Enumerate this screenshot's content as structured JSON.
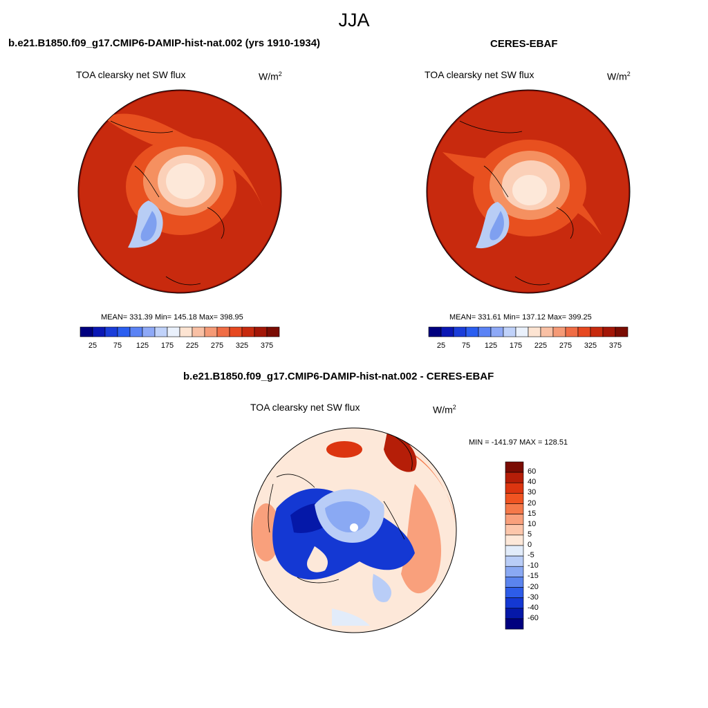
{
  "main_title": "JJA",
  "panels": [
    {
      "case": "b.e21.B1850.f09_g17.CMIP6-DAMIP-hist-nat.002 (yrs 1910-1934)",
      "variable": "TOA clearsky net SW flux",
      "units_base": "W/m",
      "units_sup": "2",
      "stats": "MEAN= 331.39  Min= 145.18  Max= 398.95"
    },
    {
      "case": "CERES-EBAF",
      "variable": "TOA clearsky net SW flux",
      "units_base": "W/m",
      "units_sup": "2",
      "stats": "MEAN= 331.61  Min= 137.12  Max= 399.25"
    }
  ],
  "abs_colorbar": {
    "labels": [
      "25",
      "75",
      "125",
      "175",
      "225",
      "275",
      "325",
      "375"
    ],
    "colors": [
      "#00007f",
      "#0a17b4",
      "#1a3dd9",
      "#2b5ef0",
      "#5b83f5",
      "#8ea9f7",
      "#c0d2fa",
      "#eaf1fc",
      "#fde4d2",
      "#f9c0a4",
      "#f59a76",
      "#f06d45",
      "#e64820",
      "#c72a0e",
      "#a31607",
      "#7a0c03"
    ]
  },
  "diff_panel": {
    "case": "b.e21.B1850.f09_g17.CMIP6-DAMIP-hist-nat.002 - CERES-EBAF",
    "variable": "TOA clearsky net SW flux",
    "units_base": "W/m",
    "units_sup": "2",
    "stats": "MIN = -141.97 MAX = 128.51"
  },
  "diff_colorbar": {
    "labels": [
      "60",
      "40",
      "30",
      "20",
      "15",
      "10",
      "5",
      "0",
      "-5",
      "-10",
      "-15",
      "-20",
      "-30",
      "-40",
      "-60"
    ],
    "colors": [
      "#7a0c03",
      "#b51e08",
      "#dc3510",
      "#f05422",
      "#f5794a",
      "#f9a07c",
      "#fcc6ab",
      "#fde8d9",
      "#e2ecfa",
      "#b9cdf7",
      "#8aa9f3",
      "#5b84ee",
      "#2d5ce8",
      "#1438d3",
      "#0518a8",
      "#00007f"
    ]
  },
  "map_colors": {
    "deep_red": "#8a1005",
    "red": "#c82a0e",
    "orange": "#e8501f",
    "light_orange": "#f59060",
    "peach": "#fbd0b8",
    "cream": "#fde8d9",
    "light_blue": "#b8cdf5",
    "blue": "#4d78e8",
    "dark_blue": "#0a1eb0"
  }
}
